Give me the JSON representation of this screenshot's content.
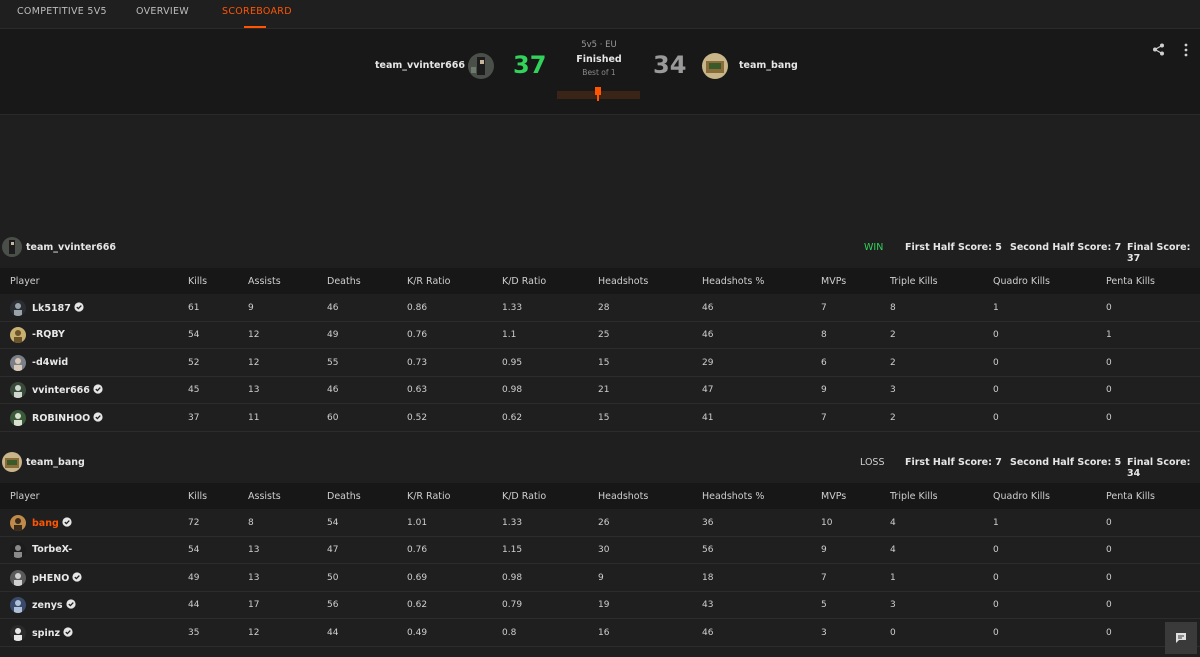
{
  "nav": {
    "tabs": [
      "COMPETITIVE 5V5",
      "OVERVIEW",
      "SCOREBOARD"
    ],
    "active": "SCOREBOARD"
  },
  "header": {
    "team1": "team_vvinter666",
    "score1": "37",
    "team2": "team_bang",
    "score2": "34",
    "mode": "5v5 · EU",
    "status": "Finished",
    "best_of": "Best of 1"
  },
  "colors": {
    "accent": "#ff5500",
    "win": "#32d35a",
    "loss": "#9a9a9a"
  },
  "icons": {
    "share": "share-icon",
    "more": "more-vertical-icon",
    "verified": "verified-badge-icon",
    "chat": "chat-icon"
  },
  "columns": [
    "Player",
    "Kills",
    "Assists",
    "Deaths",
    "K/R Ratio",
    "K/D Ratio",
    "Headshots",
    "Headshots %",
    "MVPs",
    "Triple Kills",
    "Quadro Kills",
    "Penta Kills"
  ],
  "teams": [
    {
      "name": "team_vvinter666",
      "result": "WIN",
      "first_half": "First Half Score: 5",
      "second_half": "Second Half Score: 7",
      "final": "Final Score: 37",
      "players": [
        {
          "name": "Lk5187",
          "verified": true,
          "highlight": false,
          "stats": [
            "61",
            "9",
            "46",
            "0.86",
            "1.33",
            "28",
            "46",
            "7",
            "8",
            "1",
            "0"
          ]
        },
        {
          "name": "-RQBY",
          "verified": false,
          "highlight": false,
          "stats": [
            "54",
            "12",
            "49",
            "0.76",
            "1.1",
            "25",
            "46",
            "8",
            "2",
            "0",
            "1"
          ]
        },
        {
          "name": "-d4wid",
          "verified": false,
          "highlight": false,
          "stats": [
            "52",
            "12",
            "55",
            "0.73",
            "0.95",
            "15",
            "29",
            "6",
            "2",
            "0",
            "0"
          ]
        },
        {
          "name": "vvinter666",
          "verified": true,
          "highlight": false,
          "stats": [
            "45",
            "13",
            "46",
            "0.63",
            "0.98",
            "21",
            "47",
            "9",
            "3",
            "0",
            "0"
          ]
        },
        {
          "name": "ROBINHOO",
          "verified": true,
          "highlight": false,
          "stats": [
            "37",
            "11",
            "60",
            "0.52",
            "0.62",
            "15",
            "41",
            "7",
            "2",
            "0",
            "0"
          ]
        }
      ]
    },
    {
      "name": "team_bang",
      "result": "LOSS",
      "first_half": "First Half Score: 7",
      "second_half": "Second Half Score: 5",
      "final": "Final Score: 34",
      "players": [
        {
          "name": "bang",
          "verified": true,
          "highlight": true,
          "stats": [
            "72",
            "8",
            "54",
            "1.01",
            "1.33",
            "26",
            "36",
            "10",
            "4",
            "1",
            "0"
          ]
        },
        {
          "name": "TorbeX-",
          "verified": false,
          "highlight": false,
          "stats": [
            "54",
            "13",
            "47",
            "0.76",
            "1.15",
            "30",
            "56",
            "9",
            "4",
            "0",
            "0"
          ]
        },
        {
          "name": "pHENO",
          "verified": true,
          "highlight": false,
          "stats": [
            "49",
            "13",
            "50",
            "0.69",
            "0.98",
            "9",
            "18",
            "7",
            "1",
            "0",
            "0"
          ]
        },
        {
          "name": "zenys",
          "verified": true,
          "highlight": false,
          "stats": [
            "44",
            "17",
            "56",
            "0.62",
            "0.79",
            "19",
            "43",
            "5",
            "3",
            "0",
            "0"
          ]
        },
        {
          "name": "spinz",
          "verified": true,
          "highlight": false,
          "stats": [
            "35",
            "12",
            "44",
            "0.49",
            "0.8",
            "16",
            "46",
            "3",
            "0",
            "0",
            "0"
          ]
        }
      ]
    }
  ]
}
